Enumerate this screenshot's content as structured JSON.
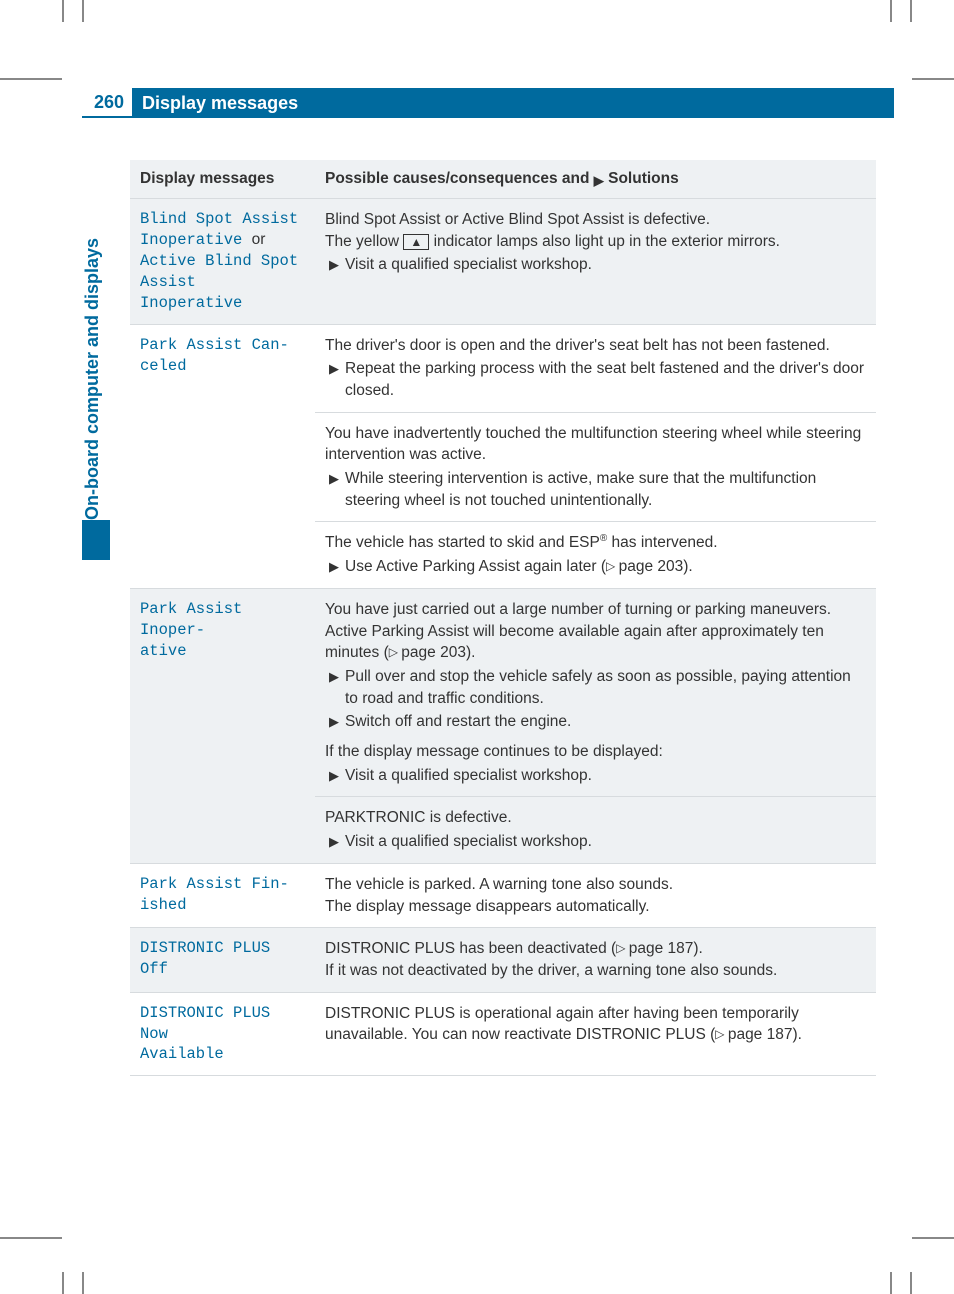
{
  "page": {
    "number": "260",
    "title": "Display messages",
    "side_tab": "On-board computer and displays"
  },
  "colors": {
    "brand": "#006a9e",
    "row_alt": "#eef1f3",
    "row_plain": "#ffffff",
    "border": "#d7dbde",
    "text": "#333333"
  },
  "table": {
    "header_left": "Display messages",
    "header_right_pre": "Possible causes/consequences and",
    "header_right_post": "Solutions",
    "arrow_glyph": "▶",
    "pageref_glyph": "▷",
    "rows": [
      {
        "msg_parts": [
          "Blind Spot Assist Inoperative",
          " or ",
          "Active Blind Spot Assist Inoperative"
        ],
        "blocks": [
          {
            "paras": [
              "Blind Spot Assist or Active Blind Spot Assist is defective.",
              "The yellow [▲] indicator lamps also light up in the exterior mirrors."
            ],
            "bullets": [
              "Visit a qualified specialist workshop."
            ]
          }
        ],
        "shade": "alt"
      },
      {
        "msg_parts": [
          "Park Assist Canceled"
        ],
        "blocks": [
          {
            "paras": [
              "The driver's door is open and the driver's seat belt has not been fastened."
            ],
            "bullets": [
              "Repeat the parking process with the seat belt fastened and the driver's door closed."
            ]
          },
          {
            "paras": [
              "You have inadvertently touched the multifunction steering wheel while steering intervention was active."
            ],
            "bullets": [
              "While steering intervention is active, make sure that the multifunction steering wheel is not touched unintentionally."
            ]
          },
          {
            "paras": [
              "The vehicle has started to skid and ESP® has intervened."
            ],
            "bullets": [
              "Use Active Parking Assist again later (▷ page 203)."
            ]
          }
        ],
        "shade": "plain"
      },
      {
        "msg_parts": [
          "Park Assist Inoperative"
        ],
        "blocks": [
          {
            "paras": [
              "You have just carried out a large number of turning or parking maneuvers.",
              "Active Parking Assist will become available again after approximately ten minutes (▷ page 203)."
            ],
            "bullets": [
              "Pull over and stop the vehicle safely as soon as possible, paying attention to road and traffic conditions.",
              "Switch off and restart the engine."
            ],
            "paras2": [
              "If the display message continues to be displayed:"
            ],
            "bullets2": [
              "Visit a qualified specialist workshop."
            ]
          },
          {
            "paras": [
              "PARKTRONIC is defective."
            ],
            "bullets": [
              "Visit a qualified specialist workshop."
            ]
          }
        ],
        "shade": "alt"
      },
      {
        "msg_parts": [
          "Park Assist Finished"
        ],
        "blocks": [
          {
            "paras": [
              "The vehicle is parked. A warning tone also sounds.",
              "The display message disappears automatically."
            ],
            "bullets": []
          }
        ],
        "shade": "plain"
      },
      {
        "msg_parts": [
          "DISTRONIC PLUS Off"
        ],
        "blocks": [
          {
            "paras": [
              "DISTRONIC PLUS has been deactivated (▷ page 187).",
              "If it was not deactivated by the driver, a warning tone also sounds."
            ],
            "bullets": []
          }
        ],
        "shade": "alt"
      },
      {
        "msg_parts": [
          "DISTRONIC PLUS Now Available"
        ],
        "blocks": [
          {
            "paras": [
              "DISTRONIC PLUS is operational again after having been temporarily unavailable. You can now reactivate DISTRONIC PLUS (▷ page 187)."
            ],
            "bullets": []
          }
        ],
        "shade": "plain"
      }
    ]
  }
}
